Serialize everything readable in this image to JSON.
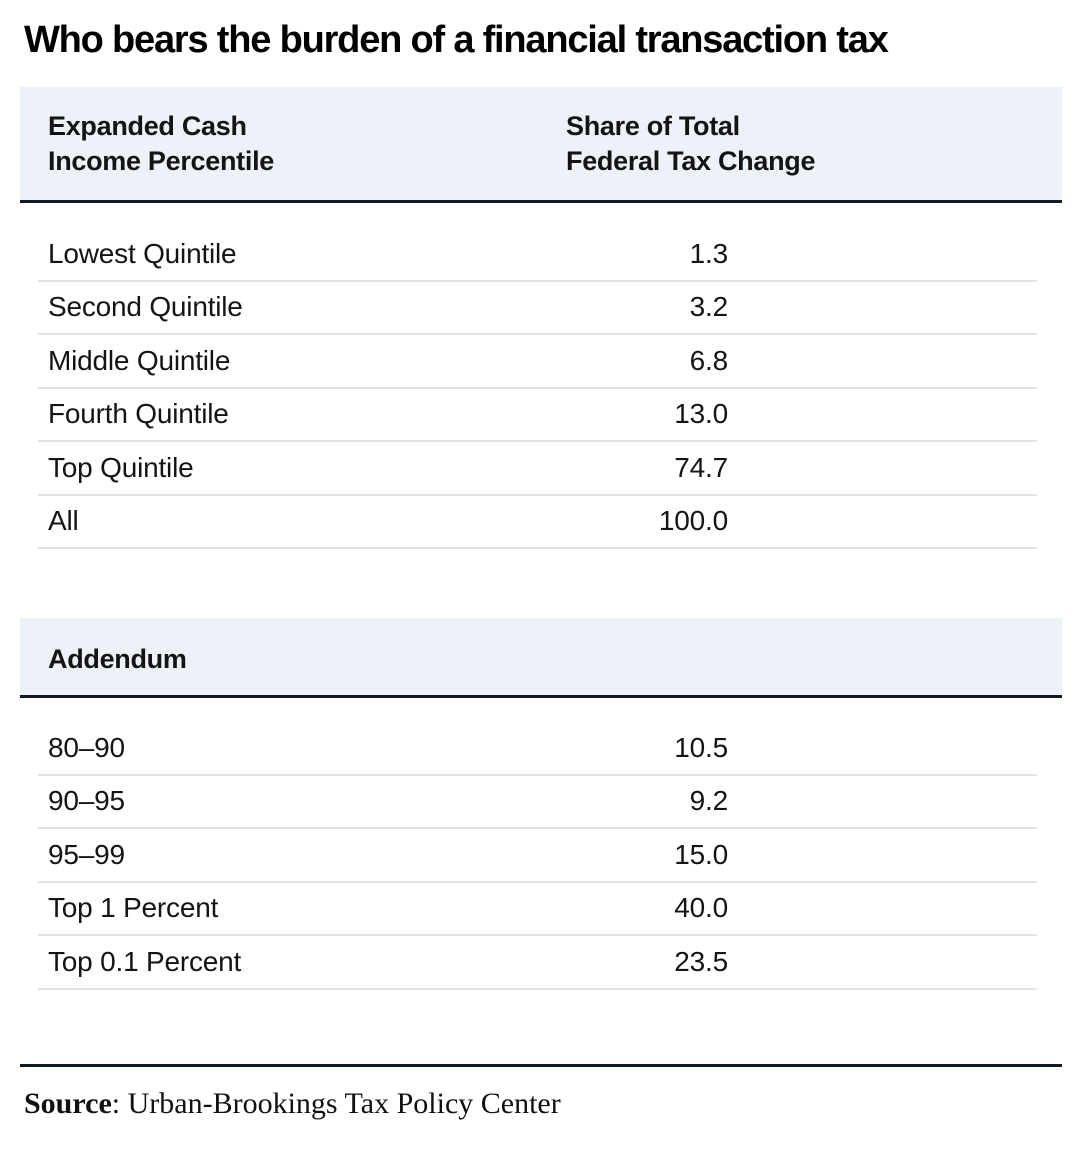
{
  "page": {
    "title": "Who bears the burden of a financial transaction tax"
  },
  "table": {
    "header": {
      "col1_line1": "Expanded Cash",
      "col1_line2": "Income Percentile",
      "col2_line1": "Share of Total",
      "col2_line2": "Federal Tax Change"
    },
    "rows": [
      {
        "label": "Lowest Quintile",
        "value": "1.3"
      },
      {
        "label": "Second Quintile",
        "value": "3.2"
      },
      {
        "label": "Middle Quintile",
        "value": "6.8"
      },
      {
        "label": "Fourth Quintile",
        "value": "13.0"
      },
      {
        "label": "Top Quintile",
        "value": "74.7"
      },
      {
        "label": "All",
        "value": "100.0"
      }
    ],
    "addendum": {
      "title": "Addendum",
      "rows": [
        {
          "label": "80–90",
          "value": "10.5"
        },
        {
          "label": "90–95",
          "value": "9.2"
        },
        {
          "label": "95–99",
          "value": "15.0"
        },
        {
          "label": "Top 1 Percent",
          "value": "40.0"
        },
        {
          "label": "Top 0.1 Percent",
          "value": "23.5"
        }
      ]
    }
  },
  "source": {
    "label": "Source",
    "separator": ": ",
    "text": "Urban-Brookings Tax Policy Center"
  },
  "colors": {
    "band": "#edf1f8",
    "rule": "#131a21",
    "separator": "#e3e3e3",
    "text": "#141414"
  },
  "chart_data": {
    "type": "table",
    "title": "Who bears the burden of a financial transaction tax",
    "columns": [
      "Expanded Cash Income Percentile",
      "Share of Total Federal Tax Change"
    ],
    "rows": [
      [
        "Lowest Quintile",
        1.3
      ],
      [
        "Second Quintile",
        3.2
      ],
      [
        "Middle Quintile",
        6.8
      ],
      [
        "Fourth Quintile",
        13.0
      ],
      [
        "Top Quintile",
        74.7
      ],
      [
        "All",
        100.0
      ]
    ],
    "addendum_rows": [
      [
        "80–90",
        10.5
      ],
      [
        "90–95",
        9.2
      ],
      [
        "95–99",
        15.0
      ],
      [
        "Top 1 Percent",
        40.0
      ],
      [
        "Top 0.1 Percent",
        23.5
      ]
    ],
    "source": "Urban-Brookings Tax Policy Center"
  }
}
